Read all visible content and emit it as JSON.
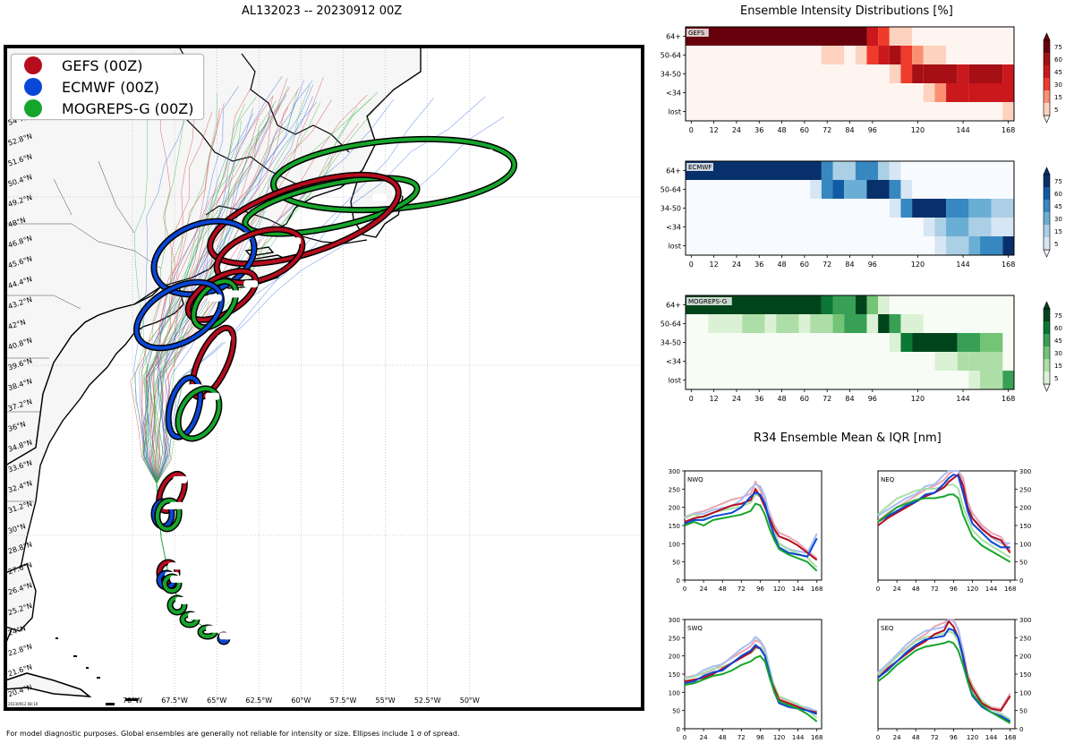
{
  "map": {
    "title": "AL132023 -- 20230912 00Z",
    "legend": [
      {
        "label": "GEFS (00Z)",
        "color": "#b50d1e"
      },
      {
        "label": "ECMWF (00Z)",
        "color": "#0a47d6"
      },
      {
        "label": "MOGREPS-G (00Z)",
        "color": "#16a52b"
      }
    ],
    "lat_labels": [
      "54°N",
      "52.8°N",
      "51.6°N",
      "50.4°N",
      "49.2°N",
      "48°N",
      "46.8°N",
      "45.6°N",
      "44.4°N",
      "43.2°N",
      "42°N",
      "40.8°N",
      "39.6°N",
      "38.4°N",
      "37.2°N",
      "36°N",
      "34.8°N",
      "33.6°N",
      "32.4°N",
      "31.2°N",
      "30°N",
      "28.8°N",
      "27.6°N",
      "26.4°N",
      "25.2°N",
      "24°N",
      "22.8°N",
      "21.6°N",
      "20.4°N"
    ],
    "lon_labels": [
      "70°W",
      "67.5°W",
      "65°W",
      "62.5°W",
      "60°W",
      "57.5°W",
      "55°W",
      "52.5°W",
      "50°W"
    ],
    "stamp": "20230912 08:10",
    "footer": "For model diagnostic purposes. Global ensembles are generally not reliable for intensity or size. Ellipses include 1 σ of spread."
  },
  "intensity": {
    "title": "Ensemble Intensity Distributions [%]",
    "row_labels": [
      "64+",
      "50-64",
      "34-50",
      "<34",
      "lost"
    ],
    "x_ticks": [
      "0",
      "12",
      "24",
      "36",
      "48",
      "60",
      "72",
      "84",
      "96",
      "120",
      "144",
      "168"
    ],
    "colorbar_ticks": [
      "75",
      "60",
      "45",
      "30",
      "15",
      "5"
    ],
    "panels": [
      {
        "label": "GEFS",
        "color_scale": [
          "#fff5f0",
          "#fdd2bf",
          "#fb9070",
          "#ef3b2c",
          "#cb181d",
          "#a50f15",
          "#67000d"
        ]
      },
      {
        "label": "ECMWF",
        "color_scale": [
          "#f7fbff",
          "#d6e6f4",
          "#abcfe5",
          "#6aaed6",
          "#3787c0",
          "#105ba4",
          "#08306b"
        ]
      },
      {
        "label": "MOGREPS-G",
        "color_scale": [
          "#f7fcf5",
          "#dbf1d5",
          "#aedea7",
          "#73c476",
          "#37a055",
          "#0b7734",
          "#00441b"
        ]
      }
    ]
  },
  "r34": {
    "title": "R34 Ensemble Mean & IQR [nm]",
    "y_ticks": [
      "0",
      "50",
      "100",
      "150",
      "200",
      "250",
      "300"
    ],
    "x_ticks": [
      "0",
      "24",
      "48",
      "72",
      "96",
      "120",
      "144",
      "168"
    ],
    "quadrants": [
      "NWQ",
      "NEQ",
      "SWQ",
      "SEQ"
    ]
  },
  "chart_data": [
    {
      "type": "heatmap",
      "title": "Ensemble Intensity Distributions [%]",
      "panel": "GEFS",
      "note": "values approximate percent of members per intensity bin by lead time (6h steps, 0-174h)",
      "rows": [
        "64+",
        "50-64",
        "34-50",
        "<34",
        "lost"
      ],
      "zlim": [
        0,
        80
      ],
      "segments": [
        {
          "row": "64+",
          "from": 0,
          "to": 96,
          "value": 80
        },
        {
          "row": "64+",
          "from": 96,
          "to": 102,
          "value": 50
        },
        {
          "row": "64+",
          "from": 102,
          "to": 108,
          "value": 30
        },
        {
          "row": "64+",
          "from": 108,
          "to": 120,
          "value": 10
        },
        {
          "row": "50-64",
          "from": 72,
          "to": 84,
          "value": 10
        },
        {
          "row": "50-64",
          "from": 90,
          "to": 96,
          "value": 10
        },
        {
          "row": "50-64",
          "from": 96,
          "to": 102,
          "value": 30
        },
        {
          "row": "50-64",
          "from": 102,
          "to": 108,
          "value": 45
        },
        {
          "row": "50-64",
          "from": 108,
          "to": 114,
          "value": 60
        },
        {
          "row": "50-64",
          "from": 114,
          "to": 120,
          "value": 30
        },
        {
          "row": "50-64",
          "from": 120,
          "to": 126,
          "value": 15
        },
        {
          "row": "50-64",
          "from": 126,
          "to": 138,
          "value": 10
        },
        {
          "row": "34-50",
          "from": 108,
          "to": 114,
          "value": 10
        },
        {
          "row": "34-50",
          "from": 114,
          "to": 120,
          "value": 30
        },
        {
          "row": "34-50",
          "from": 120,
          "to": 126,
          "value": 60
        },
        {
          "row": "34-50",
          "from": 126,
          "to": 144,
          "value": 70
        },
        {
          "row": "34-50",
          "from": 144,
          "to": 150,
          "value": 50
        },
        {
          "row": "34-50",
          "from": 150,
          "to": 168,
          "value": 60
        },
        {
          "row": "34-50",
          "from": 168,
          "to": 174,
          "value": 45
        },
        {
          "row": "<34",
          "from": 126,
          "to": 132,
          "value": 10
        },
        {
          "row": "<34",
          "from": 132,
          "to": 138,
          "value": 20
        },
        {
          "row": "<34",
          "from": 138,
          "to": 150,
          "value": 45
        },
        {
          "row": "<34",
          "from": 150,
          "to": 174,
          "value": 55
        },
        {
          "row": "lost",
          "from": 168,
          "to": 174,
          "value": 10
        }
      ]
    },
    {
      "type": "heatmap",
      "panel": "ECMWF",
      "rows": [
        "64+",
        "50-64",
        "34-50",
        "<34",
        "lost"
      ],
      "zlim": [
        0,
        80
      ],
      "segments": [
        {
          "row": "64+",
          "from": 0,
          "to": 72,
          "value": 80
        },
        {
          "row": "64+",
          "from": 72,
          "to": 78,
          "value": 45
        },
        {
          "row": "64+",
          "from": 78,
          "to": 90,
          "value": 25
        },
        {
          "row": "64+",
          "from": 90,
          "to": 96,
          "value": 55
        },
        {
          "row": "64+",
          "from": 96,
          "to": 102,
          "value": 45
        },
        {
          "row": "64+",
          "from": 102,
          "to": 108,
          "value": 15
        },
        {
          "row": "64+",
          "from": 108,
          "to": 114,
          "value": 5
        },
        {
          "row": "50-64",
          "from": 66,
          "to": 72,
          "value": 10
        },
        {
          "row": "50-64",
          "from": 72,
          "to": 78,
          "value": 45
        },
        {
          "row": "50-64",
          "from": 78,
          "to": 84,
          "value": 60
        },
        {
          "row": "50-64",
          "from": 84,
          "to": 96,
          "value": 35
        },
        {
          "row": "50-64",
          "from": 96,
          "to": 108,
          "value": 75
        },
        {
          "row": "50-64",
          "from": 108,
          "to": 114,
          "value": 45
        },
        {
          "row": "50-64",
          "from": 114,
          "to": 120,
          "value": 10
        },
        {
          "row": "34-50",
          "from": 108,
          "to": 114,
          "value": 10
        },
        {
          "row": "34-50",
          "from": 114,
          "to": 120,
          "value": 45
        },
        {
          "row": "34-50",
          "from": 120,
          "to": 138,
          "value": 75
        },
        {
          "row": "34-50",
          "from": 138,
          "to": 150,
          "value": 45
        },
        {
          "row": "34-50",
          "from": 150,
          "to": 162,
          "value": 30
        },
        {
          "row": "34-50",
          "from": 162,
          "to": 174,
          "value": 15
        },
        {
          "row": "<34",
          "from": 126,
          "to": 132,
          "value": 5
        },
        {
          "row": "<34",
          "from": 132,
          "to": 138,
          "value": 15
        },
        {
          "row": "<34",
          "from": 138,
          "to": 150,
          "value": 30
        },
        {
          "row": "<34",
          "from": 150,
          "to": 162,
          "value": 15
        },
        {
          "row": "<34",
          "from": 162,
          "to": 174,
          "value": 5
        },
        {
          "row": "lost",
          "from": 132,
          "to": 138,
          "value": 5
        },
        {
          "row": "lost",
          "from": 138,
          "to": 150,
          "value": 15
        },
        {
          "row": "lost",
          "from": 150,
          "to": 156,
          "value": 30
        },
        {
          "row": "lost",
          "from": 156,
          "to": 168,
          "value": 50
        },
        {
          "row": "lost",
          "from": 168,
          "to": 174,
          "value": 75
        }
      ]
    },
    {
      "type": "heatmap",
      "panel": "MOGREPS-G",
      "rows": [
        "64+",
        "50-64",
        "34-50",
        "<34",
        "lost"
      ],
      "zlim": [
        0,
        80
      ],
      "segments": [
        {
          "row": "64+",
          "from": 0,
          "to": 72,
          "value": 80
        },
        {
          "row": "64+",
          "from": 72,
          "to": 78,
          "value": 60
        },
        {
          "row": "64+",
          "from": 78,
          "to": 90,
          "value": 45
        },
        {
          "row": "64+",
          "from": 90,
          "to": 96,
          "value": 75
        },
        {
          "row": "64+",
          "from": 96,
          "to": 102,
          "value": 30
        },
        {
          "row": "64+",
          "from": 102,
          "to": 108,
          "value": 10
        },
        {
          "row": "50-64",
          "from": 12,
          "to": 30,
          "value": 10
        },
        {
          "row": "50-64",
          "from": 30,
          "to": 42,
          "value": 20
        },
        {
          "row": "50-64",
          "from": 42,
          "to": 48,
          "value": 10
        },
        {
          "row": "50-64",
          "from": 48,
          "to": 60,
          "value": 20
        },
        {
          "row": "50-64",
          "from": 60,
          "to": 66,
          "value": 10
        },
        {
          "row": "50-64",
          "from": 66,
          "to": 78,
          "value": 20
        },
        {
          "row": "50-64",
          "from": 78,
          "to": 84,
          "value": 35
        },
        {
          "row": "50-64",
          "from": 84,
          "to": 96,
          "value": 45
        },
        {
          "row": "50-64",
          "from": 96,
          "to": 102,
          "value": 10
        },
        {
          "row": "50-64",
          "from": 102,
          "to": 108,
          "value": 75
        },
        {
          "row": "50-64",
          "from": 108,
          "to": 114,
          "value": 45
        },
        {
          "row": "50-64",
          "from": 114,
          "to": 126,
          "value": 10
        },
        {
          "row": "34-50",
          "from": 108,
          "to": 114,
          "value": 10
        },
        {
          "row": "34-50",
          "from": 114,
          "to": 120,
          "value": 60
        },
        {
          "row": "34-50",
          "from": 120,
          "to": 144,
          "value": 80
        },
        {
          "row": "34-50",
          "from": 144,
          "to": 156,
          "value": 45
        },
        {
          "row": "34-50",
          "from": 156,
          "to": 168,
          "value": 30
        },
        {
          "row": "<34",
          "from": 132,
          "to": 144,
          "value": 10
        },
        {
          "row": "<34",
          "from": 144,
          "to": 150,
          "value": 20
        },
        {
          "row": "<34",
          "from": 150,
          "to": 168,
          "value": 15
        },
        {
          "row": "lost",
          "from": 150,
          "to": 156,
          "value": 5
        },
        {
          "row": "lost",
          "from": 156,
          "to": 168,
          "value": 20
        },
        {
          "row": "lost",
          "from": 168,
          "to": 174,
          "value": 45
        }
      ]
    },
    {
      "type": "line",
      "title": "R34 Ensemble Mean & IQR [nm]",
      "panel": "NWQ",
      "x": [
        0,
        12,
        24,
        36,
        48,
        60,
        72,
        84,
        90,
        96,
        102,
        108,
        114,
        120,
        132,
        144,
        156,
        168
      ],
      "ylim": [
        0,
        300
      ],
      "series": [
        {
          "name": "GEFS (00Z)",
          "values": [
            160,
            170,
            175,
            185,
            195,
            205,
            210,
            220,
            250,
            230,
            200,
            170,
            140,
            120,
            110,
            95,
            75,
            55
          ]
        },
        {
          "name": "ECMWF (00Z)",
          "values": [
            155,
            165,
            165,
            175,
            180,
            185,
            200,
            230,
            240,
            235,
            210,
            160,
            120,
            90,
            75,
            70,
            65,
            115
          ]
        },
        {
          "name": "MOGREPS-G (00Z)",
          "values": [
            150,
            160,
            150,
            165,
            170,
            175,
            180,
            190,
            210,
            205,
            180,
            140,
            110,
            85,
            70,
            60,
            50,
            25
          ]
        }
      ]
    },
    {
      "type": "line",
      "panel": "NEQ",
      "x": [
        0,
        12,
        24,
        36,
        48,
        60,
        72,
        84,
        90,
        96,
        102,
        108,
        114,
        120,
        132,
        144,
        156,
        168
      ],
      "ylim": [
        0,
        300
      ],
      "series": [
        {
          "name": "GEFS (00Z)",
          "values": [
            150,
            170,
            185,
            200,
            215,
            230,
            240,
            255,
            270,
            280,
            290,
            260,
            200,
            170,
            140,
            120,
            110,
            75
          ]
        },
        {
          "name": "ECMWF (00Z)",
          "values": [
            160,
            175,
            190,
            205,
            215,
            235,
            240,
            265,
            280,
            290,
            285,
            240,
            190,
            155,
            130,
            105,
            90,
            90
          ]
        },
        {
          "name": "MOGREPS-G (00Z)",
          "values": [
            160,
            180,
            200,
            210,
            220,
            225,
            225,
            230,
            235,
            235,
            225,
            180,
            150,
            120,
            95,
            80,
            65,
            50
          ]
        }
      ]
    },
    {
      "type": "line",
      "panel": "SWQ",
      "x": [
        0,
        12,
        24,
        36,
        48,
        60,
        72,
        84,
        90,
        96,
        102,
        108,
        114,
        120,
        132,
        144,
        156,
        168
      ],
      "ylim": [
        0,
        300
      ],
      "series": [
        {
          "name": "GEFS (00Z)",
          "values": [
            130,
            135,
            140,
            150,
            165,
            180,
            195,
            210,
            225,
            220,
            200,
            140,
            110,
            80,
            70,
            60,
            50,
            45
          ]
        },
        {
          "name": "ECMWF (00Z)",
          "values": [
            125,
            130,
            145,
            155,
            160,
            180,
            200,
            215,
            230,
            220,
            200,
            150,
            100,
            70,
            60,
            55,
            50,
            40
          ]
        },
        {
          "name": "MOGREPS-G (00Z)",
          "values": [
            120,
            125,
            135,
            145,
            150,
            160,
            175,
            185,
            195,
            200,
            185,
            140,
            100,
            75,
            65,
            55,
            40,
            20
          ]
        }
      ]
    },
    {
      "type": "line",
      "panel": "SEQ",
      "x": [
        0,
        12,
        24,
        36,
        48,
        60,
        72,
        84,
        90,
        96,
        102,
        108,
        114,
        120,
        132,
        144,
        156,
        168
      ],
      "ylim": [
        0,
        300
      ],
      "series": [
        {
          "name": "GEFS (00Z)",
          "values": [
            140,
            165,
            185,
            205,
            225,
            240,
            260,
            270,
            295,
            280,
            250,
            200,
            140,
            110,
            70,
            55,
            50,
            90
          ]
        },
        {
          "name": "ECMWF (00Z)",
          "values": [
            140,
            160,
            185,
            210,
            230,
            245,
            250,
            255,
            275,
            270,
            250,
            195,
            130,
            90,
            60,
            45,
            35,
            20
          ]
        },
        {
          "name": "MOGREPS-G (00Z)",
          "values": [
            130,
            150,
            175,
            195,
            215,
            225,
            230,
            235,
            240,
            235,
            215,
            175,
            130,
            95,
            65,
            45,
            30,
            15
          ]
        }
      ]
    }
  ]
}
